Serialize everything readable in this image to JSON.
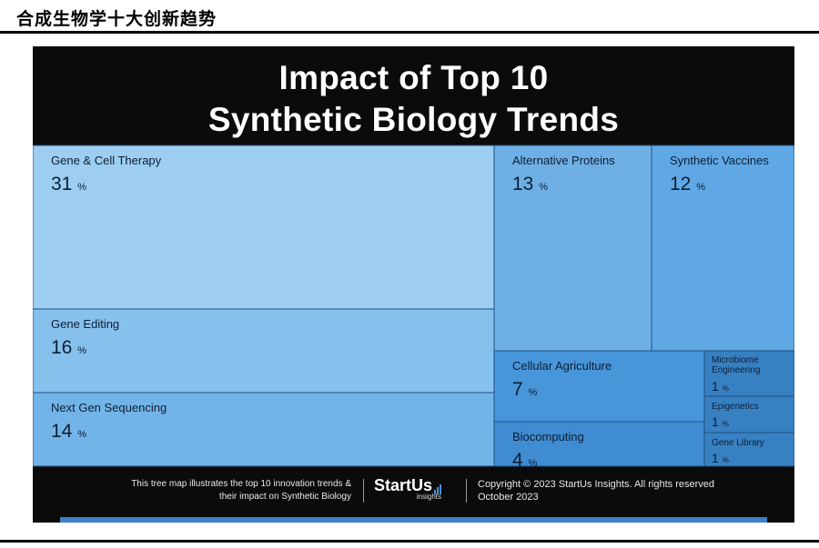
{
  "page_heading": "合成生物学十大创新趋势",
  "card": {
    "title_line1": "Impact of Top 10",
    "title_line2": "Synthetic Biology Trends"
  },
  "chart_data": {
    "type": "treemap",
    "title": "Impact of Top 10 Synthetic Biology Trends",
    "unit": "%",
    "items": [
      {
        "label": "Gene & Cell Therapy",
        "value": 31,
        "color": "#9dcdf0"
      },
      {
        "label": "Gene Editing",
        "value": 16,
        "color": "#86c0ec"
      },
      {
        "label": "Next Gen Sequencing",
        "value": 14,
        "color": "#73b4e8"
      },
      {
        "label": "Alternative Proteins",
        "value": 13,
        "color": "#6eb0e6"
      },
      {
        "label": "Synthetic Vaccines",
        "value": 12,
        "color": "#5fa8e5"
      },
      {
        "label": "Cellular Agriculture",
        "value": 7,
        "color": "#4896da"
      },
      {
        "label": "Biocomputing",
        "value": 4,
        "color": "#3f8cd2"
      },
      {
        "label": "Microbiome Engineering",
        "value": 1,
        "color": "#3780c2"
      },
      {
        "label": "Epigenetics",
        "value": 1,
        "color": "#3780c2"
      },
      {
        "label": "Gene Library",
        "value": 1,
        "color": "#3780c2"
      }
    ]
  },
  "footer": {
    "description_line1": "This tree map illustrates the top 10 innovation trends &",
    "description_line2": "their impact on Synthetic Biology",
    "brand_name": "StartUs",
    "brand_sub": "insights",
    "copyright_line1": "Copyright © 2023 StartUs Insights. All rights reserved",
    "copyright_line2": "October 2023"
  }
}
